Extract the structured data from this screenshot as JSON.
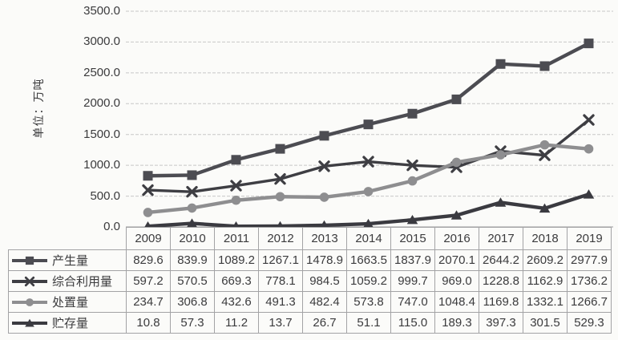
{
  "chart_data": {
    "type": "line",
    "title": "",
    "y_axis_title": "单位：万吨",
    "ylabel": "单位：万吨",
    "xlabel": "",
    "y_ticks": [
      3500,
      3000,
      2500,
      2000,
      1500,
      1000,
      500,
      0
    ],
    "y_tick_decimals": 1,
    "ylim": [
      0,
      3500
    ],
    "grid": true,
    "legend_position": "table-left",
    "categories": [
      "2009",
      "2010",
      "2011",
      "2012",
      "2013",
      "2014",
      "2015",
      "2016",
      "2017",
      "2018",
      "2019"
    ],
    "series": [
      {
        "name": "产生量",
        "marker": "square",
        "color": "#4c4c52",
        "values": [
          829.6,
          839.9,
          1089.2,
          1267.1,
          1478.9,
          1663.5,
          1837.9,
          2070.1,
          2644.2,
          2609.2,
          2977.9
        ]
      },
      {
        "name": "综合利用量",
        "marker": "x",
        "color": "#3e3e43",
        "values": [
          597.2,
          570.5,
          669.3,
          778.1,
          984.5,
          1059.2,
          999.7,
          969.0,
          1228.8,
          1162.9,
          1736.2
        ]
      },
      {
        "name": "处置量",
        "marker": "circle",
        "color": "#8e8e90",
        "values": [
          234.7,
          306.8,
          432.6,
          491.3,
          482.4,
          573.8,
          747.0,
          1048.4,
          1169.8,
          1332.1,
          1266.7
        ]
      },
      {
        "name": "贮存量",
        "marker": "triangle",
        "color": "#3a3a40",
        "values": [
          10.8,
          57.3,
          11.2,
          13.7,
          26.7,
          51.1,
          115.0,
          189.3,
          397.3,
          301.5,
          529.3
        ]
      }
    ]
  },
  "colors": {
    "background": "#fbfbf9",
    "grid_line": "#c7c7c7",
    "axis_line": "#9a9a9a",
    "table_border": "#a3a3a5",
    "text": "#3b3b3d"
  }
}
